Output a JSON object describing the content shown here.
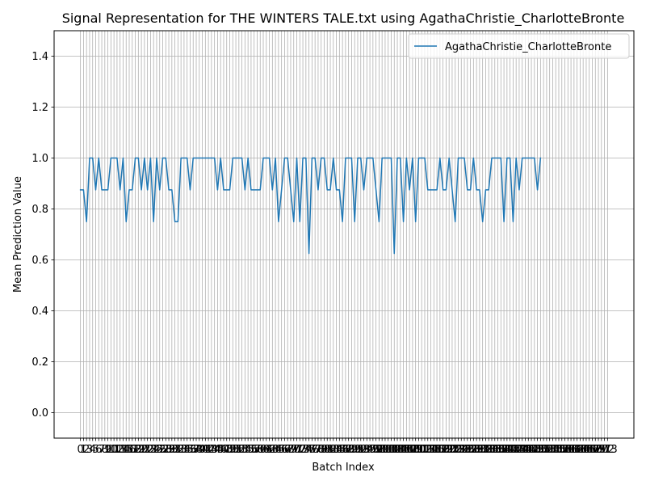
{
  "chart_data": {
    "type": "line",
    "title": "Signal Representation for THE WINTERS TALE.txt using AgathaChristie_CharlotteBronte",
    "xlabel": "Batch Index",
    "ylabel": "Mean Prediction Value",
    "xlim": [
      -8.65,
      181.65
    ],
    "ylim": [
      -0.1,
      1.5
    ],
    "yticks": [
      "0.0",
      "0.2",
      "0.4",
      "0.6",
      "0.8",
      "1.0",
      "1.2",
      "1.4"
    ],
    "xticks_first": 0,
    "xticks_last": 173,
    "grid": true,
    "legend_position": "top-right",
    "series": [
      {
        "name": "AgathaChristie_CharlotteBronte",
        "color": "#1f77b4",
        "values": [
          0.875,
          0.875,
          0.75,
          1.0,
          1.0,
          0.875,
          1.0,
          0.875,
          0.875,
          0.875,
          1.0,
          1.0,
          1.0,
          0.875,
          1.0,
          0.75,
          0.875,
          0.875,
          1.0,
          1.0,
          0.875,
          1.0,
          0.875,
          1.0,
          0.75,
          1.0,
          0.875,
          1.0,
          1.0,
          0.875,
          0.875,
          0.75,
          0.75,
          1.0,
          1.0,
          1.0,
          0.875,
          1.0,
          1.0,
          1.0,
          1.0,
          1.0,
          1.0,
          1.0,
          1.0,
          0.875,
          1.0,
          0.875,
          0.875,
          0.875,
          1.0,
          1.0,
          1.0,
          1.0,
          0.875,
          1.0,
          0.875,
          0.875,
          0.875,
          0.875,
          1.0,
          1.0,
          1.0,
          0.875,
          1.0,
          0.75,
          0.875,
          1.0,
          1.0,
          0.875,
          0.75,
          1.0,
          0.75,
          1.0,
          1.0,
          0.625,
          1.0,
          1.0,
          0.875,
          1.0,
          1.0,
          0.875,
          0.875,
          1.0,
          0.875,
          0.875,
          0.75,
          1.0,
          1.0,
          1.0,
          0.75,
          1.0,
          1.0,
          0.875,
          1.0,
          1.0,
          1.0,
          0.875,
          0.75,
          1.0,
          1.0,
          1.0,
          1.0,
          0.625,
          1.0,
          1.0,
          0.75,
          1.0,
          0.875,
          1.0,
          0.75,
          1.0,
          1.0,
          1.0,
          0.875,
          0.875,
          0.875,
          0.875,
          1.0,
          0.875,
          0.875,
          1.0,
          0.875,
          0.75,
          1.0,
          1.0,
          1.0,
          0.875,
          0.875,
          1.0,
          0.875,
          0.875,
          0.75,
          0.875,
          0.875,
          1.0,
          1.0,
          1.0,
          1.0,
          0.75,
          1.0,
          1.0,
          0.75,
          1.0,
          0.875,
          1.0,
          1.0,
          1.0,
          1.0,
          1.0,
          0.875,
          1.0
        ]
      }
    ]
  }
}
